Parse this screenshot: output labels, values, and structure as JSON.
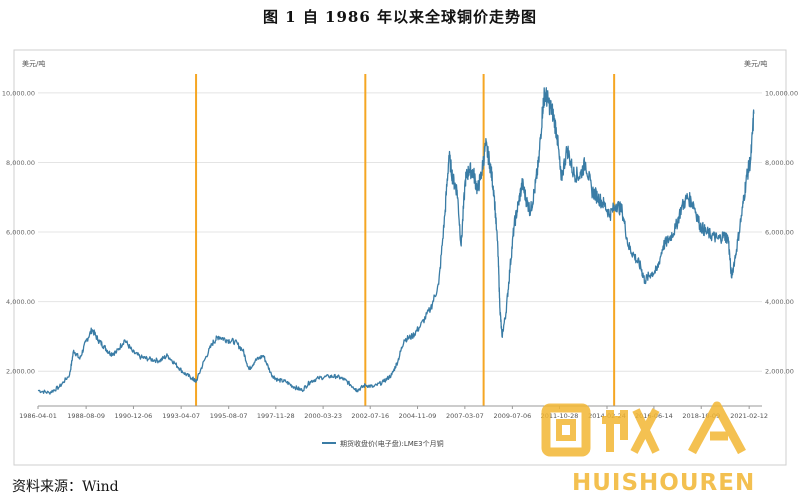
{
  "title": "图 1 自 1986 年以来全球铜价走势图",
  "source": "资料来源：Wind",
  "chart_data": {
    "type": "line",
    "title": "图 1 自 1986 年以来全球铜价走势图",
    "ylabel_left": "美元/吨",
    "ylabel_right": "美元/吨",
    "ylim": [
      1000,
      10600
    ],
    "yticks": [
      2000,
      4000,
      6000,
      8000,
      10000
    ],
    "ytick_labels": [
      "2,000.00",
      "4,000.00",
      "6,000.00",
      "8,000.00",
      "10,000.00"
    ],
    "xlim": [
      1986.25,
      2021.75
    ],
    "xtick_labels": [
      "1986-04-01",
      "1988-08-09",
      "1990-12-06",
      "1993-04-07",
      "1995-08-07",
      "1997-11-28",
      "2000-03-23",
      "2002-07-16",
      "2004-11-09",
      "2007-03-07",
      "2009-07-06",
      "2011-10-28",
      "2014-02-24",
      "2016-06-14",
      "2018-10-09",
      "2021-02-12"
    ],
    "xtick_values": [
      1986.25,
      1988.61,
      1990.93,
      1993.27,
      1995.6,
      1997.91,
      2000.23,
      2002.54,
      2004.86,
      2007.18,
      2009.51,
      2011.82,
      2014.15,
      2016.45,
      2018.77,
      2021.12
    ],
    "grid": true,
    "legend": "bottom-center",
    "legend_entries": [
      "期货收盘价(电子盘):LME3个月铜"
    ],
    "vlines": [
      1994.0,
      2002.3,
      2008.1,
      2014.5
    ],
    "vline_color": "#f5a623",
    "series": [
      {
        "name": "期货收盘价(电子盘):LME3个月铜",
        "color": "#3a7ca5",
        "x": [
          1986.25,
          1986.8,
          1987.3,
          1987.8,
          1988.0,
          1988.3,
          1988.6,
          1988.9,
          1989.2,
          1989.5,
          1989.8,
          1990.1,
          1990.5,
          1990.9,
          1991.3,
          1991.7,
          1992.2,
          1992.6,
          1993.0,
          1993.4,
          1993.8,
          1994.0,
          1994.4,
          1994.8,
          1995.1,
          1995.5,
          1995.9,
          1996.3,
          1996.6,
          1996.9,
          1997.3,
          1997.7,
          1998.0,
          1998.4,
          1998.8,
          1999.2,
          1999.6,
          2000.0,
          2000.5,
          2000.9,
          2001.3,
          2001.7,
          2001.9,
          2002.3,
          2002.7,
          2003.2,
          2003.6,
          2003.9,
          2004.2,
          2004.6,
          2005.0,
          2005.5,
          2005.9,
          2006.2,
          2006.4,
          2006.6,
          2006.8,
          2007.0,
          2007.2,
          2007.4,
          2007.6,
          2007.8,
          2008.0,
          2008.2,
          2008.4,
          2008.6,
          2008.8,
          2008.9,
          2009.0,
          2009.2,
          2009.4,
          2009.6,
          2009.8,
          2010.0,
          2010.2,
          2010.4,
          2010.6,
          2010.8,
          2011.0,
          2011.1,
          2011.3,
          2011.5,
          2011.7,
          2011.9,
          2012.2,
          2012.5,
          2012.8,
          2013.1,
          2013.4,
          2013.7,
          2014.0,
          2014.3,
          2014.6,
          2014.9,
          2015.2,
          2015.5,
          2015.8,
          2016.0,
          2016.3,
          2016.6,
          2016.9,
          2017.2,
          2017.5,
          2017.8,
          2018.1,
          2018.4,
          2018.7,
          2019.0,
          2019.3,
          2019.6,
          2019.9,
          2020.1,
          2020.25,
          2020.5,
          2020.8,
          2021.0,
          2021.2,
          2021.35
        ],
        "values": [
          1450,
          1380,
          1550,
          1900,
          2600,
          2350,
          2850,
          3200,
          2900,
          2700,
          2500,
          2550,
          2900,
          2550,
          2400,
          2350,
          2300,
          2450,
          2200,
          1950,
          1800,
          1700,
          2300,
          2800,
          3000,
          2900,
          2850,
          2600,
          2050,
          2300,
          2450,
          1900,
          1750,
          1700,
          1550,
          1450,
          1700,
          1800,
          1850,
          1850,
          1750,
          1550,
          1450,
          1600,
          1550,
          1700,
          1900,
          2300,
          2900,
          3000,
          3300,
          3800,
          4500,
          6500,
          8200,
          7500,
          7200,
          5600,
          7500,
          7800,
          7700,
          7200,
          7700,
          8500,
          8000,
          7200,
          5500,
          3800,
          3000,
          3700,
          5000,
          6200,
          6800,
          7400,
          6900,
          6600,
          7200,
          8000,
          9600,
          10000,
          9700,
          9400,
          8800,
          7500,
          8400,
          7700,
          7600,
          8000,
          7200,
          7000,
          6800,
          6500,
          6800,
          6600,
          5600,
          5300,
          5000,
          4600,
          4800,
          4900,
          5600,
          5800,
          6100,
          6700,
          7000,
          6800,
          6200,
          6000,
          5900,
          5800,
          5900,
          5800,
          4700,
          5500,
          6700,
          7600,
          8100,
          9400
        ]
      }
    ]
  },
  "watermark": {
    "brand_text": "回收人",
    "brand_sub": "HUISHOUREN",
    "color": "#f2b632",
    "logo": "huishouren-logo"
  }
}
